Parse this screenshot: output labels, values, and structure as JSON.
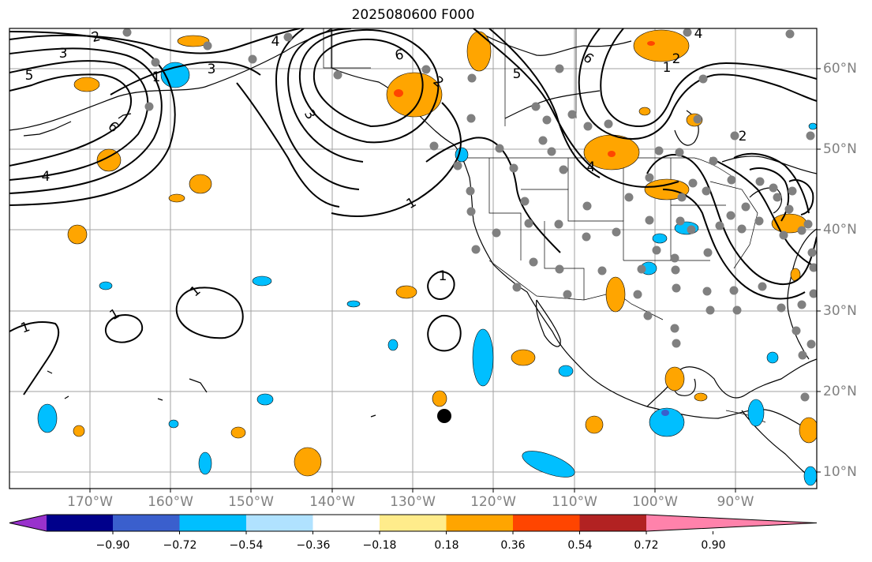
{
  "title": "2025080600 F000",
  "lon_labels": [
    "170°W",
    "160°W",
    "150°W",
    "140°W",
    "130°W",
    "120°W",
    "110°W",
    "100°W",
    "90°W"
  ],
  "lat_labels": [
    "60°N",
    "50°N",
    "40°N",
    "30°N",
    "20°N",
    "10°N"
  ],
  "colorbar": {
    "ticks": [
      "−0.90",
      "−0.72",
      "−0.54",
      "−0.36",
      "−0.18",
      "0.18",
      "0.36",
      "0.54",
      "0.72",
      "0.90"
    ],
    "colors": [
      "#9932cc",
      "#00008b",
      "#3a5fcd",
      "#00bfff",
      "#b0e2ff",
      "#ffffff",
      "#ffec8b",
      "#ffa500",
      "#ff4500",
      "#b22222",
      "#ff82ab"
    ]
  },
  "contour_labels": [
    "2",
    "4",
    "3",
    "5",
    "6",
    "3",
    "4",
    "6",
    "5",
    "1",
    "2",
    "3",
    "6",
    "1",
    "4",
    "1",
    "2",
    "2",
    "4",
    "1",
    "1",
    "1",
    "1"
  ],
  "colors": {
    "frame": "#000000",
    "grid": "#a0a0a0",
    "positive": "#ffa500",
    "negative": "#00bfff",
    "station": "#808080"
  }
}
